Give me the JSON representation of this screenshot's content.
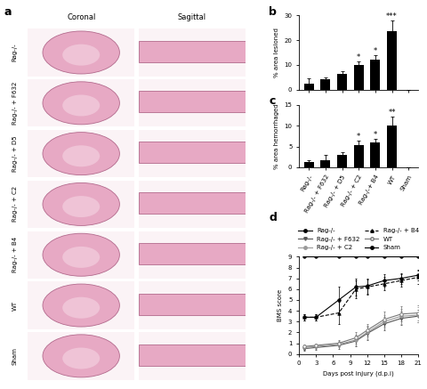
{
  "panel_a": {
    "letter": "a",
    "columns": [
      "Coronal",
      "Sagittal"
    ],
    "rows": [
      "Rag-/-",
      "Rag-/- + F632",
      "Rag-/- + D5",
      "Rag-/- + C2",
      "Rag-/- + B4",
      "WT",
      "Sham"
    ]
  },
  "chart_data": [
    {
      "letter": "b",
      "type": "bar",
      "ylabel": "% area lesioned",
      "categories": [
        "Rag-/-",
        "Rag-/- + F632",
        "Rag-/- + D5",
        "Rag-/- + C2",
        "Rag-/-+ B4",
        "WT",
        "Sham"
      ],
      "values": [
        2.5,
        4,
        6.5,
        10,
        12,
        23.5,
        0
      ],
      "errors": [
        2,
        1,
        1,
        1.5,
        2,
        4.5,
        0
      ],
      "significance": [
        null,
        null,
        null,
        "*",
        "*",
        "***",
        null
      ],
      "color": "#000000",
      "ylim": [
        0,
        30
      ],
      "yticks": [
        0,
        10,
        20,
        30
      ],
      "tick_labels": "y"
    },
    {
      "letter": "c",
      "type": "bar",
      "ylabel": "% area hemorrhaged",
      "categories": [
        "Rag-/-",
        "Rag-/- + F632",
        "Rag-/- + D5",
        "Rag-/- + C2",
        "Rag-/-+ B4",
        "WT",
        "Sham"
      ],
      "values": [
        1.2,
        1.8,
        3,
        5.3,
        6,
        10,
        0
      ],
      "errors": [
        0.5,
        1.2,
        0.7,
        1.2,
        0.8,
        2.2,
        0
      ],
      "significance": [
        null,
        null,
        null,
        "*",
        "*",
        "**",
        null
      ],
      "color": "#000000",
      "ylim": [
        0,
        15
      ],
      "yticks": [
        0,
        5,
        10,
        15
      ]
    },
    {
      "letter": "d",
      "type": "line",
      "ylabel": "BMS score",
      "xlabel": "Days post injury (d.p.i)",
      "x": [
        1,
        3,
        7,
        10,
        12,
        15,
        18,
        21
      ],
      "xlim": [
        0,
        21
      ],
      "xticks": [
        0,
        3,
        6,
        9,
        12,
        15,
        18,
        21
      ],
      "ylim": [
        0,
        9
      ],
      "yticks": [
        0,
        1,
        2,
        3,
        4,
        5,
        6,
        7,
        8,
        9
      ],
      "legend": "upper center",
      "series": [
        {
          "name": "Rag-/-",
          "color": "#000000",
          "marker": "circle",
          "line_style": "solid",
          "values": [
            3.4,
            3.4,
            5.0,
            6.2,
            6.3,
            6.8,
            7.0,
            7.3
          ],
          "errors": [
            0.3,
            0.3,
            1.2,
            0.8,
            0.7,
            0.6,
            0.5,
            0.5
          ]
        },
        {
          "name": "Rag-/- + F632",
          "color": "#555555",
          "marker": "triangle_down",
          "line_style": "solid",
          "values": [
            0.5,
            0.6,
            0.8,
            1.2,
            1.9,
            2.8,
            3.3,
            3.5
          ],
          "errors": [
            0.2,
            0.2,
            0.3,
            0.5,
            0.6,
            0.6,
            0.6,
            0.6
          ]
        },
        {
          "name": "Rag-/- + C2",
          "color": "#999999",
          "marker": "circle",
          "line_style": "solid",
          "values": [
            0.6,
            0.7,
            0.9,
            1.3,
            2.0,
            3.0,
            3.5,
            3.6
          ],
          "errors": [
            0.2,
            0.2,
            0.3,
            0.5,
            0.6,
            0.6,
            0.7,
            0.7
          ]
        },
        {
          "name": "Rag-/- + B4",
          "color": "#000000",
          "marker": "triangle_up",
          "line_style": "dashed",
          "values": [
            3.4,
            3.4,
            3.8,
            6.0,
            6.2,
            6.5,
            6.8,
            7.1
          ],
          "errors": [
            0.3,
            0.3,
            1.0,
            0.8,
            0.7,
            0.6,
            0.6,
            0.6
          ]
        },
        {
          "name": "WT",
          "color": "#777777",
          "marker": "open_circle",
          "line_style": "solid",
          "values": [
            0.7,
            0.8,
            1.0,
            1.5,
            2.2,
            3.2,
            3.7,
            3.8
          ],
          "errors": [
            0.2,
            0.2,
            0.3,
            0.5,
            0.6,
            0.7,
            0.7,
            0.7
          ]
        },
        {
          "name": "Sham",
          "color": "#000000",
          "marker": "circle",
          "line_style": "solid",
          "values": [
            9,
            9,
            9,
            9,
            9,
            9,
            9,
            9
          ],
          "errors": [
            0,
            0,
            0,
            0,
            0,
            0,
            0,
            0
          ]
        }
      ]
    }
  ]
}
